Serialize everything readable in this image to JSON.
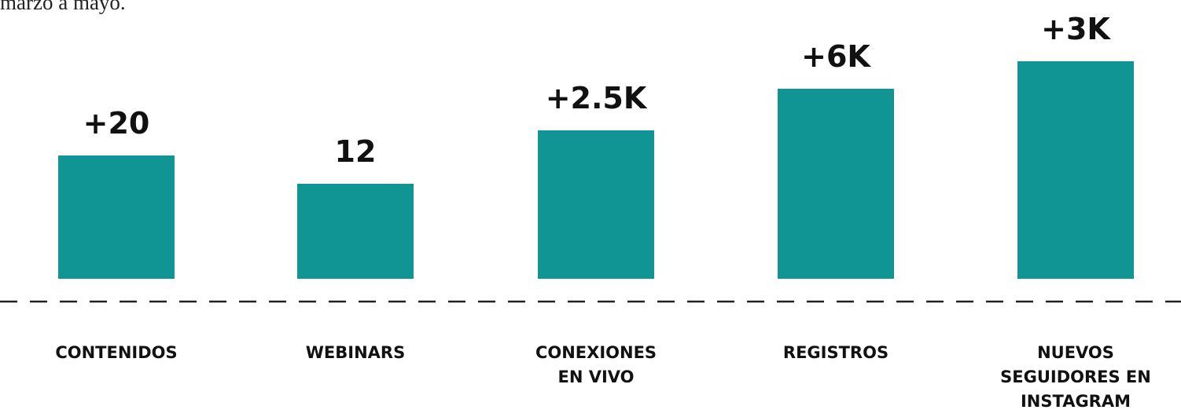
{
  "caption": "marzo a mayo.",
  "items": [
    {
      "value_label": "+20",
      "label_lines": [
        "CONTENIDOS"
      ]
    },
    {
      "value_label": "12",
      "label_lines": [
        "WEBINARS"
      ]
    },
    {
      "value_label": "+2.5K",
      "label_lines": [
        "CONEXIONES",
        "EN VIVO"
      ]
    },
    {
      "value_label": "+6K",
      "label_lines": [
        "REGISTROS"
      ]
    },
    {
      "value_label": "+3K",
      "label_lines": [
        "NUEVOS",
        "SEGUIDORES EN",
        "INSTAGRAM"
      ]
    }
  ]
}
